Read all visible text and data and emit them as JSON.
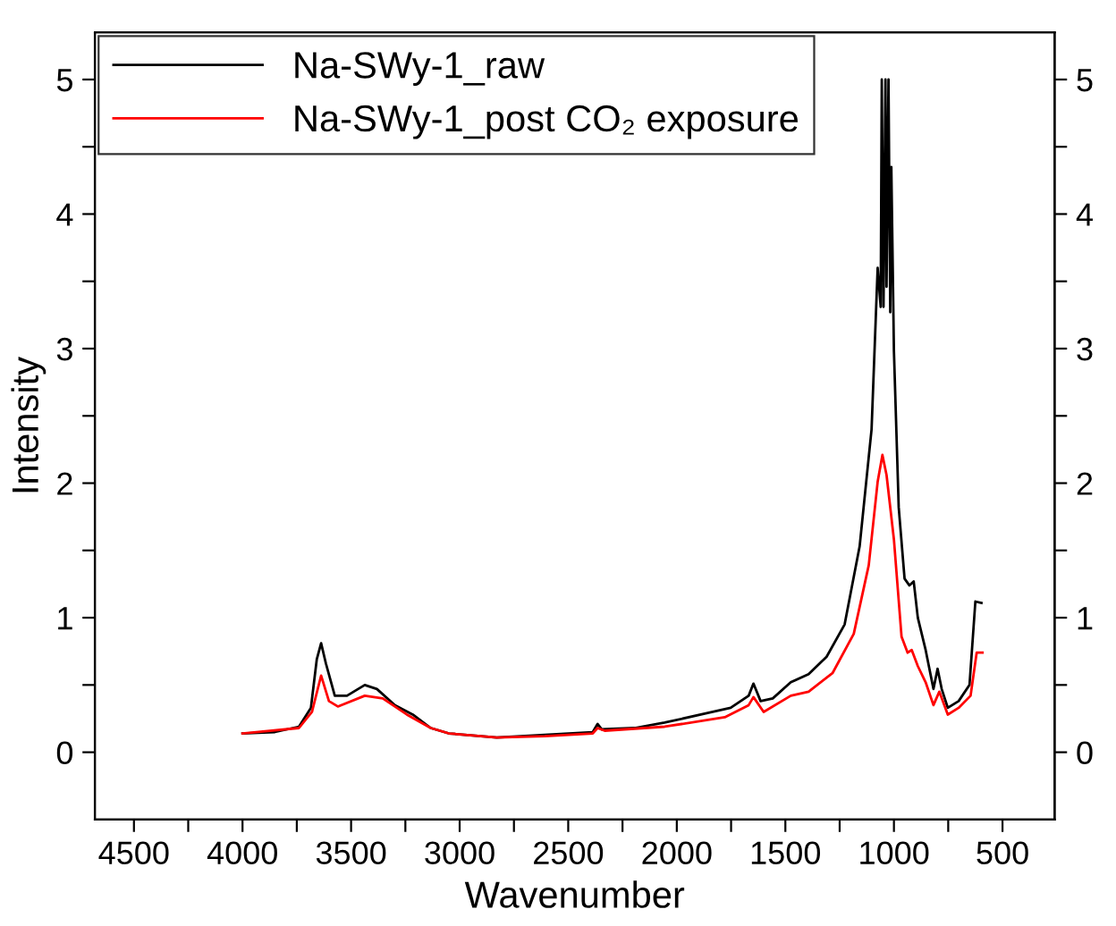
{
  "chart_data": {
    "type": "line",
    "xlabel": "Wavenumber",
    "ylabel": "Intensity",
    "xlim": [
      4680,
      260
    ],
    "xticks": [
      4500,
      {
        "value": 4250,
        "label": null
      },
      4000,
      {
        "value": 3750,
        "label": null
      },
      3500,
      {
        "value": 3250,
        "label": null
      },
      3000,
      {
        "value": 2750,
        "label": null
      },
      2500,
      {
        "value": 2250,
        "label": null
      },
      2000,
      {
        "value": 1750,
        "label": null
      },
      1500,
      {
        "value": 1250,
        "label": null
      },
      1000,
      {
        "value": 750,
        "label": null
      },
      500
    ],
    "ylim": [
      -0.5,
      5.35
    ],
    "yticks": [
      0,
      {
        "value": 0.5,
        "label": null
      },
      1,
      {
        "value": 1.5,
        "label": null
      },
      2,
      {
        "value": 2.5,
        "label": null
      },
      3,
      {
        "value": 3.5,
        "label": null
      },
      4,
      {
        "value": 4.5,
        "label": null
      },
      5
    ],
    "y2lim": [
      -0.5,
      5.35
    ],
    "y2ticks": [
      0,
      {
        "value": 0.5,
        "label": null
      },
      1,
      {
        "value": 1.5,
        "label": null
      },
      2,
      {
        "value": 2.5,
        "label": null
      },
      3,
      {
        "value": 3.5,
        "label": null
      },
      4,
      {
        "value": 4.5,
        "label": null
      },
      5
    ],
    "legend": "top left",
    "grid": false,
    "line_style": "solid",
    "series": [
      {
        "name": "Na-SWy-1_raw",
        "color": "#000000",
        "x": [
          4000,
          3851,
          3740,
          3685,
          3658,
          3638,
          3616,
          3575,
          3519,
          3437,
          3381,
          3298,
          3216,
          3133,
          3050,
          2829,
          2608,
          2387,
          2365,
          2345,
          2194,
          2056,
          1862,
          1752,
          1669,
          1647,
          1614,
          1558,
          1475,
          1393,
          1310,
          1227,
          1158,
          1103,
          1075,
          1061,
          1056,
          1048,
          1039,
          1034,
          1025,
          1017,
          1012,
          1000,
          978,
          951,
          929,
          909,
          890,
          854,
          818,
          799,
          780,
          752,
          702,
          652,
          625,
          597
        ],
        "values": [
          0.14,
          0.15,
          0.19,
          0.33,
          0.69,
          0.81,
          0.66,
          0.42,
          0.42,
          0.5,
          0.47,
          0.35,
          0.28,
          0.18,
          0.14,
          0.11,
          0.13,
          0.15,
          0.21,
          0.17,
          0.18,
          0.22,
          0.29,
          0.33,
          0.42,
          0.51,
          0.38,
          0.4,
          0.52,
          0.58,
          0.71,
          0.95,
          1.53,
          2.4,
          3.6,
          3.31,
          5.0,
          3.31,
          5.0,
          3.46,
          5.0,
          3.27,
          4.35,
          2.98,
          1.82,
          1.29,
          1.24,
          1.27,
          1.0,
          0.76,
          0.47,
          0.62,
          0.47,
          0.33,
          0.38,
          0.5,
          1.12,
          1.11
        ]
      },
      {
        "name": "Na-SWy-1_post CO₂ exposure",
        "color": "#ff0000",
        "x": [
          4000,
          3740,
          3680,
          3638,
          3602,
          3561,
          3437,
          3354,
          3243,
          3133,
          3050,
          2829,
          2608,
          2387,
          2365,
          2332,
          2056,
          1779,
          1669,
          1647,
          1600,
          1475,
          1393,
          1282,
          1185,
          1116,
          1075,
          1053,
          1034,
          1000,
          965,
          937,
          918,
          890,
          854,
          818,
          791,
          752,
          702,
          647,
          619,
          592
        ],
        "values": [
          0.14,
          0.18,
          0.3,
          0.57,
          0.38,
          0.34,
          0.42,
          0.4,
          0.28,
          0.18,
          0.14,
          0.11,
          0.12,
          0.14,
          0.18,
          0.16,
          0.19,
          0.26,
          0.35,
          0.41,
          0.3,
          0.42,
          0.45,
          0.59,
          0.88,
          1.39,
          2.01,
          2.21,
          2.06,
          1.58,
          0.86,
          0.74,
          0.76,
          0.64,
          0.52,
          0.35,
          0.45,
          0.28,
          0.33,
          0.42,
          0.74,
          0.74
        ]
      }
    ]
  }
}
